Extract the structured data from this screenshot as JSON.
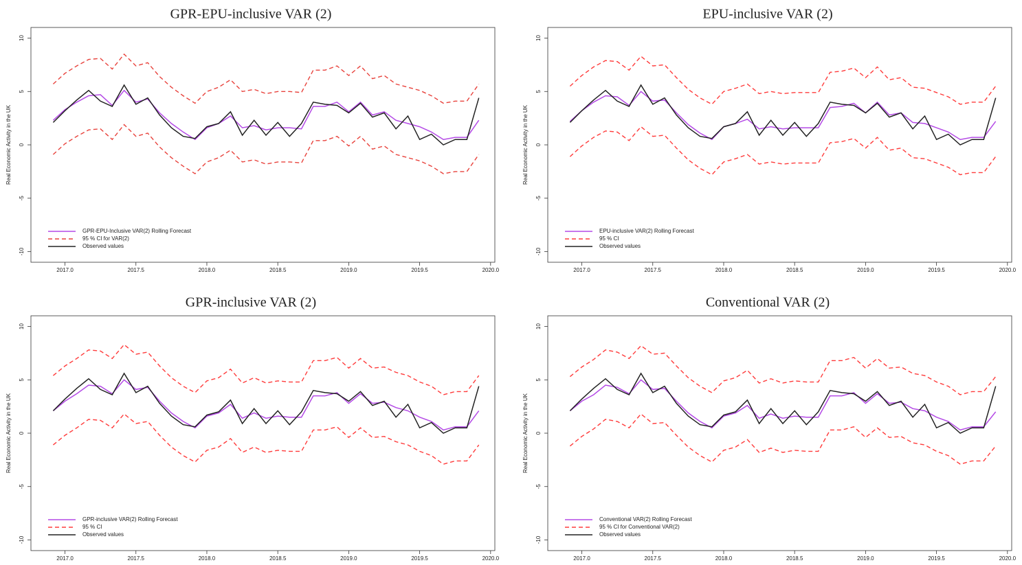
{
  "chart_data": [
    {
      "type": "line",
      "title": "GPR-EPU-inclusive VAR (2)",
      "y_label": "Real Economic Activity in the UK",
      "x": [
        2016.917,
        2017.0,
        2017.083,
        2017.167,
        2017.25,
        2017.333,
        2017.417,
        2017.5,
        2017.583,
        2017.667,
        2017.75,
        2017.833,
        2017.917,
        2018.0,
        2018.083,
        2018.167,
        2018.25,
        2018.333,
        2018.417,
        2018.5,
        2018.583,
        2018.667,
        2018.75,
        2018.833,
        2018.917,
        2019.0,
        2019.083,
        2019.167,
        2019.25,
        2019.333,
        2019.417,
        2019.5,
        2019.583,
        2019.667,
        2019.75,
        2019.833,
        2019.917
      ],
      "xlim": [
        2016.76,
        2020.03
      ],
      "ylim": [
        -11,
        11
      ],
      "xticks": [
        {
          "value": 2017,
          "label": "2017.0"
        },
        2017.5,
        {
          "value": 2018,
          "label": "2018.0"
        },
        2018.5,
        {
          "value": 2019,
          "label": "2019.0"
        },
        2019.5,
        {
          "value": 2020,
          "label": "2020.0"
        }
      ],
      "yticks": [
        -10,
        -5,
        0,
        5,
        10
      ],
      "series": [
        {
          "name": "GPR-EPU-Inclusive VAR(2) Rolling Forecast",
          "color": "#b44ae6",
          "values": [
            2.3,
            3.3,
            4.0,
            4.6,
            4.7,
            3.7,
            5.1,
            4.0,
            4.3,
            3.0,
            2.0,
            1.2,
            0.5,
            1.6,
            2.0,
            2.7,
            1.6,
            1.8,
            1.4,
            1.6,
            1.6,
            1.5,
            3.6,
            3.6,
            4.0,
            3.1,
            4.0,
            2.8,
            3.1,
            2.3,
            2.0,
            1.7,
            1.2,
            0.5,
            0.7,
            0.7,
            2.3
          ]
        },
        {
          "name": "95 % CI for VAR(2)",
          "color": "#e8423c",
          "dashed": true,
          "values": [
            -0.9,
            0.1,
            0.8,
            1.4,
            1.5,
            0.5,
            1.9,
            0.8,
            1.1,
            -0.2,
            -1.2,
            -2.0,
            -2.7,
            -1.6,
            -1.2,
            -0.5,
            -1.6,
            -1.4,
            -1.8,
            -1.6,
            -1.6,
            -1.7,
            0.4,
            0.4,
            0.8,
            -0.1,
            0.8,
            -0.4,
            -0.1,
            -0.9,
            -1.2,
            -1.5,
            -2.0,
            -2.7,
            -2.5,
            -2.5,
            -0.9
          ],
          "upper": [
            5.7,
            6.7,
            7.4,
            8.0,
            8.1,
            7.1,
            8.5,
            7.4,
            7.7,
            6.4,
            5.4,
            4.6,
            3.9,
            5.0,
            5.4,
            6.1,
            5.0,
            5.2,
            4.8,
            5.0,
            5.0,
            4.9,
            7.0,
            7.0,
            7.4,
            6.5,
            7.4,
            6.2,
            6.5,
            5.7,
            5.4,
            5.1,
            4.6,
            3.9,
            4.1,
            4.1,
            5.7
          ]
        },
        {
          "name": "Observed values",
          "color": "#222222",
          "values": [
            2.1,
            3.2,
            4.2,
            5.1,
            4.1,
            3.6,
            5.6,
            3.8,
            4.4,
            2.8,
            1.6,
            0.8,
            0.6,
            1.7,
            2.0,
            3.1,
            0.9,
            2.3,
            0.9,
            2.1,
            0.8,
            2.0,
            4.0,
            3.8,
            3.7,
            3.0,
            3.9,
            2.6,
            3.0,
            1.5,
            2.7,
            0.5,
            1.0,
            0.0,
            0.5,
            0.5,
            4.4
          ]
        }
      ]
    },
    {
      "type": "line",
      "title": "EPU-inclusive VAR (2)",
      "y_label": "Real Economic Activity in the UK",
      "x": [
        2016.917,
        2017.0,
        2017.083,
        2017.167,
        2017.25,
        2017.333,
        2017.417,
        2017.5,
        2017.583,
        2017.667,
        2017.75,
        2017.833,
        2017.917,
        2018.0,
        2018.083,
        2018.167,
        2018.25,
        2018.333,
        2018.417,
        2018.5,
        2018.583,
        2018.667,
        2018.75,
        2018.833,
        2018.917,
        2019.0,
        2019.083,
        2019.167,
        2019.25,
        2019.333,
        2019.417,
        2019.5,
        2019.583,
        2019.667,
        2019.75,
        2019.833,
        2019.917
      ],
      "xlim": [
        2016.76,
        2020.03
      ],
      "ylim": [
        -11,
        11
      ],
      "xticks": [
        {
          "value": 2017,
          "label": "2017.0"
        },
        2017.5,
        {
          "value": 2018,
          "label": "2018.0"
        },
        2018.5,
        {
          "value": 2019,
          "label": "2019.0"
        },
        2019.5,
        {
          "value": 2020,
          "label": "2020.0"
        }
      ],
      "yticks": [
        -10,
        -5,
        0,
        5,
        10
      ],
      "series": [
        {
          "name": "EPU-inclusive VAR(2) Rolling Forecast",
          "color": "#b44ae6",
          "values": [
            2.2,
            3.2,
            4.0,
            4.6,
            4.5,
            3.7,
            5.0,
            4.1,
            4.2,
            3.0,
            1.9,
            1.1,
            0.5,
            1.7,
            2.0,
            2.4,
            1.5,
            1.7,
            1.5,
            1.6,
            1.6,
            1.6,
            3.5,
            3.6,
            3.9,
            3.0,
            4.0,
            2.8,
            3.0,
            2.1,
            2.0,
            1.6,
            1.2,
            0.5,
            0.7,
            0.7,
            2.2
          ]
        },
        {
          "name": "95 % CI",
          "color": "#ff3b3b",
          "dashed": true,
          "values": [
            -1.1,
            -0.1,
            0.7,
            1.3,
            1.2,
            0.4,
            1.7,
            0.8,
            0.9,
            -0.3,
            -1.4,
            -2.2,
            -2.8,
            -1.6,
            -1.3,
            -0.9,
            -1.8,
            -1.6,
            -1.8,
            -1.7,
            -1.7,
            -1.7,
            0.2,
            0.3,
            0.6,
            -0.3,
            0.7,
            -0.5,
            -0.3,
            -1.2,
            -1.3,
            -1.7,
            -2.1,
            -2.8,
            -2.6,
            -2.6,
            -1.1
          ],
          "upper": [
            5.5,
            6.5,
            7.3,
            7.9,
            7.8,
            7.0,
            8.3,
            7.4,
            7.5,
            6.3,
            5.2,
            4.4,
            3.8,
            5.0,
            5.3,
            5.7,
            4.8,
            5.0,
            4.8,
            4.9,
            4.9,
            4.9,
            6.8,
            6.9,
            7.2,
            6.3,
            7.3,
            6.1,
            6.3,
            5.4,
            5.3,
            4.9,
            4.5,
            3.8,
            4.0,
            4.0,
            5.5
          ]
        },
        {
          "name": "Observed values",
          "color": "#222222",
          "values": [
            2.1,
            3.2,
            4.2,
            5.1,
            4.1,
            3.6,
            5.6,
            3.8,
            4.4,
            2.8,
            1.6,
            0.8,
            0.6,
            1.7,
            2.0,
            3.1,
            0.9,
            2.3,
            0.9,
            2.1,
            0.8,
            2.0,
            4.0,
            3.8,
            3.7,
            3.0,
            3.9,
            2.6,
            3.0,
            1.5,
            2.7,
            0.5,
            1.0,
            0.0,
            0.5,
            0.5,
            4.4
          ]
        }
      ]
    },
    {
      "type": "line",
      "title": "GPR-inclusive VAR (2)",
      "y_label": "Real Economic Activity in the UK",
      "x": [
        2016.917,
        2017.0,
        2017.083,
        2017.167,
        2017.25,
        2017.333,
        2017.417,
        2017.5,
        2017.583,
        2017.667,
        2017.75,
        2017.833,
        2017.917,
        2018.0,
        2018.083,
        2018.167,
        2018.25,
        2018.333,
        2018.417,
        2018.5,
        2018.583,
        2018.667,
        2018.75,
        2018.833,
        2018.917,
        2019.0,
        2019.083,
        2019.167,
        2019.25,
        2019.333,
        2019.417,
        2019.5,
        2019.583,
        2019.667,
        2019.75,
        2019.833,
        2019.917
      ],
      "xlim": [
        2016.76,
        2020.03
      ],
      "ylim": [
        -11,
        11
      ],
      "xticks": [
        {
          "value": 2017,
          "label": "2017.0"
        },
        2017.5,
        {
          "value": 2018,
          "label": "2018.0"
        },
        2018.5,
        {
          "value": 2019,
          "label": "2019.0"
        },
        2019.5,
        {
          "value": 2020,
          "label": "2020.0"
        }
      ],
      "yticks": [
        -10,
        -5,
        0,
        5,
        10
      ],
      "series": [
        {
          "name": "GPR-inclusive VAR(2) Rolling Forecast",
          "color": "#b44ae6",
          "values": [
            2.1,
            3.0,
            3.7,
            4.5,
            4.4,
            3.7,
            5.0,
            4.1,
            4.3,
            3.0,
            1.9,
            1.1,
            0.5,
            1.6,
            1.9,
            2.7,
            1.4,
            1.9,
            1.4,
            1.6,
            1.5,
            1.5,
            3.5,
            3.5,
            3.8,
            2.8,
            3.7,
            2.8,
            2.9,
            2.4,
            2.1,
            1.5,
            1.1,
            0.3,
            0.6,
            0.6,
            2.1
          ]
        },
        {
          "name": "95 % CI",
          "color": "#ff3b3b",
          "dashed": true,
          "values": [
            -1.1,
            -0.2,
            0.5,
            1.3,
            1.2,
            0.5,
            1.8,
            0.9,
            1.1,
            -0.2,
            -1.3,
            -2.1,
            -2.7,
            -1.6,
            -1.3,
            -0.5,
            -1.8,
            -1.3,
            -1.8,
            -1.6,
            -1.7,
            -1.7,
            0.3,
            0.3,
            0.6,
            -0.4,
            0.5,
            -0.4,
            -0.3,
            -0.8,
            -1.1,
            -1.7,
            -2.1,
            -2.9,
            -2.6,
            -2.6,
            -1.1
          ],
          "upper": [
            5.4,
            6.3,
            7.0,
            7.8,
            7.7,
            7.0,
            8.3,
            7.4,
            7.6,
            6.3,
            5.2,
            4.4,
            3.8,
            4.9,
            5.2,
            6.0,
            4.7,
            5.2,
            4.7,
            4.9,
            4.8,
            4.8,
            6.8,
            6.8,
            7.1,
            6.1,
            7.0,
            6.1,
            6.2,
            5.7,
            5.4,
            4.8,
            4.4,
            3.6,
            3.9,
            3.9,
            5.4
          ]
        },
        {
          "name": "Observed values",
          "color": "#222222",
          "values": [
            2.1,
            3.2,
            4.2,
            5.1,
            4.1,
            3.6,
            5.6,
            3.8,
            4.4,
            2.8,
            1.6,
            0.8,
            0.6,
            1.7,
            2.0,
            3.1,
            0.9,
            2.3,
            0.9,
            2.1,
            0.8,
            2.0,
            4.0,
            3.8,
            3.7,
            3.0,
            3.9,
            2.6,
            3.0,
            1.5,
            2.7,
            0.5,
            1.0,
            0.0,
            0.5,
            0.5,
            4.4
          ]
        }
      ]
    },
    {
      "type": "line",
      "title": "Conventional VAR (2)",
      "y_label": "Real Economic Activity in the UK",
      "x": [
        2016.917,
        2017.0,
        2017.083,
        2017.167,
        2017.25,
        2017.333,
        2017.417,
        2017.5,
        2017.583,
        2017.667,
        2017.75,
        2017.833,
        2017.917,
        2018.0,
        2018.083,
        2018.167,
        2018.25,
        2018.333,
        2018.417,
        2018.5,
        2018.583,
        2018.667,
        2018.75,
        2018.833,
        2018.917,
        2019.0,
        2019.083,
        2019.167,
        2019.25,
        2019.333,
        2019.417,
        2019.5,
        2019.583,
        2019.667,
        2019.75,
        2019.833,
        2019.917
      ],
      "xlim": [
        2016.76,
        2020.03
      ],
      "ylim": [
        -11,
        11
      ],
      "xticks": [
        {
          "value": 2017,
          "label": "2017.0"
        },
        2017.5,
        {
          "value": 2018,
          "label": "2018.0"
        },
        2018.5,
        {
          "value": 2019,
          "label": "2019.0"
        },
        2019.5,
        {
          "value": 2020,
          "label": "2020.0"
        }
      ],
      "yticks": [
        -10,
        -5,
        0,
        5,
        10
      ],
      "series": [
        {
          "name": "Conventional VAR(2) Rolling Forecast",
          "color": "#b44ae6",
          "values": [
            2.1,
            3.0,
            3.6,
            4.5,
            4.3,
            3.7,
            5.0,
            4.1,
            4.2,
            3.0,
            1.9,
            1.1,
            0.5,
            1.6,
            1.9,
            2.6,
            1.4,
            1.8,
            1.4,
            1.6,
            1.5,
            1.5,
            3.5,
            3.5,
            3.8,
            2.8,
            3.7,
            2.8,
            2.9,
            2.3,
            2.1,
            1.5,
            1.1,
            0.3,
            0.6,
            0.6,
            2.0
          ]
        },
        {
          "name": "95 % CI for Conventional VAR(2)",
          "color": "#ff3b3b",
          "dashed": true,
          "values": [
            -1.2,
            -0.3,
            0.4,
            1.3,
            1.1,
            0.5,
            1.8,
            0.9,
            1.0,
            -0.2,
            -1.3,
            -2.1,
            -2.7,
            -1.6,
            -1.3,
            -0.6,
            -1.8,
            -1.4,
            -1.8,
            -1.6,
            -1.7,
            -1.7,
            0.3,
            0.3,
            0.6,
            -0.4,
            0.5,
            -0.4,
            -0.3,
            -0.9,
            -1.1,
            -1.7,
            -2.1,
            -2.9,
            -2.6,
            -2.6,
            -1.2
          ],
          "upper": [
            5.3,
            6.2,
            6.9,
            7.8,
            7.6,
            7.0,
            8.2,
            7.4,
            7.5,
            6.3,
            5.2,
            4.4,
            3.8,
            4.9,
            5.2,
            5.9,
            4.7,
            5.1,
            4.7,
            4.9,
            4.8,
            4.8,
            6.8,
            6.8,
            7.1,
            6.1,
            7.0,
            6.1,
            6.2,
            5.6,
            5.4,
            4.8,
            4.4,
            3.6,
            3.9,
            3.9,
            5.3
          ]
        },
        {
          "name": "Observed values",
          "color": "#222222",
          "values": [
            2.1,
            3.2,
            4.2,
            5.1,
            4.1,
            3.6,
            5.6,
            3.8,
            4.4,
            2.8,
            1.6,
            0.8,
            0.6,
            1.7,
            2.0,
            3.1,
            0.9,
            2.3,
            0.9,
            2.1,
            0.8,
            2.0,
            4.0,
            3.8,
            3.7,
            3.0,
            3.9,
            2.6,
            3.0,
            1.5,
            2.7,
            0.5,
            1.0,
            0.0,
            0.5,
            0.5,
            4.4
          ]
        }
      ]
    }
  ]
}
